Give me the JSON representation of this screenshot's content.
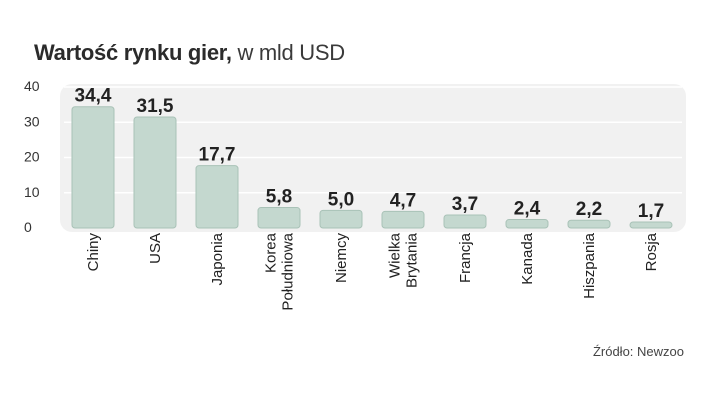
{
  "chart_data": {
    "type": "bar",
    "title": "Wartość rynku gier,",
    "subtitle": "w mld USD",
    "source": "Źródło: Newzoo",
    "categories": [
      [
        "Chiny"
      ],
      [
        "USA"
      ],
      [
        "Japonia"
      ],
      [
        "Korea",
        "Południowa"
      ],
      [
        "Niemcy"
      ],
      [
        "Wielka",
        "Brytania"
      ],
      [
        "Francja"
      ],
      [
        "Kanada"
      ],
      [
        "Hiszpania"
      ],
      [
        "Rosja"
      ]
    ],
    "values": [
      34.4,
      31.5,
      17.7,
      5.8,
      5.0,
      4.7,
      3.7,
      2.4,
      2.2,
      1.7
    ],
    "value_labels": [
      "34,4",
      "31,5",
      "17,7",
      "5,8",
      "5,0",
      "4,7",
      "3,7",
      "2,4",
      "2,2",
      "1,7"
    ],
    "yticks": [
      "0",
      "10",
      "20",
      "30",
      "40"
    ],
    "ylim": [
      0,
      40
    ],
    "grid": true,
    "colors": {
      "bar_fill": "#c4d8cf",
      "bar_stroke": "#a9c2b7",
      "plot_bg": "#f1f1f1",
      "grid": "#ffffff",
      "text": "#222222"
    }
  }
}
